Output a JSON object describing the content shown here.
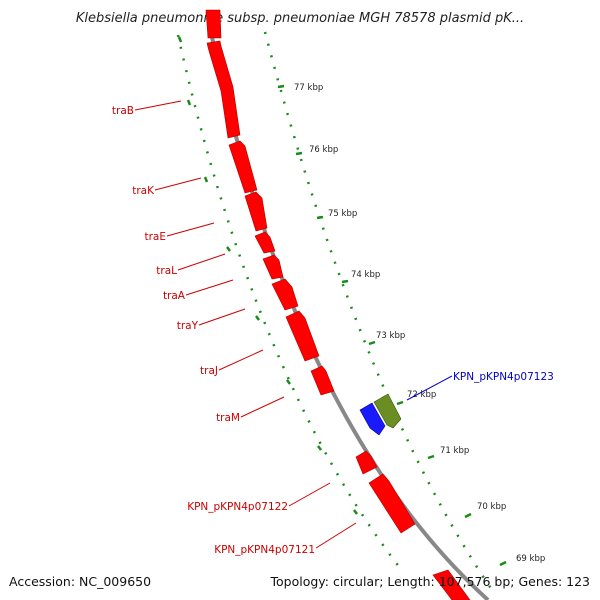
{
  "title": "Klebsiella pneumoniae subsp. pneumoniae MGH 78578 plasmid pK...",
  "accession": "Accession: NC_009650",
  "summary": "Topology: circular; Length: 107,576 bp; Genes: 123",
  "colors": {
    "forward_gene": "#ff0000",
    "reverse_gene_blue": "#1a1aff",
    "reverse_gene_green": "#6b8e23",
    "backbone": "#888888",
    "tick": "#1a8a1a",
    "label_red": "#cc0000",
    "label_blue": "#0000cc"
  },
  "ticks": [
    "77 kbp",
    "76 kbp",
    "75 kbp",
    "74 kbp",
    "73 kbp",
    "72 kbp",
    "71 kbp",
    "70 kbp",
    "69 kbp"
  ],
  "gene_labels": [
    {
      "text": "traB",
      "color": "#cc0000"
    },
    {
      "text": "traK",
      "color": "#cc0000"
    },
    {
      "text": "traE",
      "color": "#cc0000"
    },
    {
      "text": "traL",
      "color": "#cc0000"
    },
    {
      "text": "traA",
      "color": "#cc0000"
    },
    {
      "text": "traY",
      "color": "#cc0000"
    },
    {
      "text": "traJ",
      "color": "#cc0000"
    },
    {
      "text": "traM",
      "color": "#cc0000"
    },
    {
      "text": "KPN_pKPN4p07122",
      "color": "#cc0000"
    },
    {
      "text": "KPN_pKPN4p07121",
      "color": "#cc0000"
    },
    {
      "text": "KPN_pKPN4p07123",
      "color": "#0000cc"
    }
  ]
}
